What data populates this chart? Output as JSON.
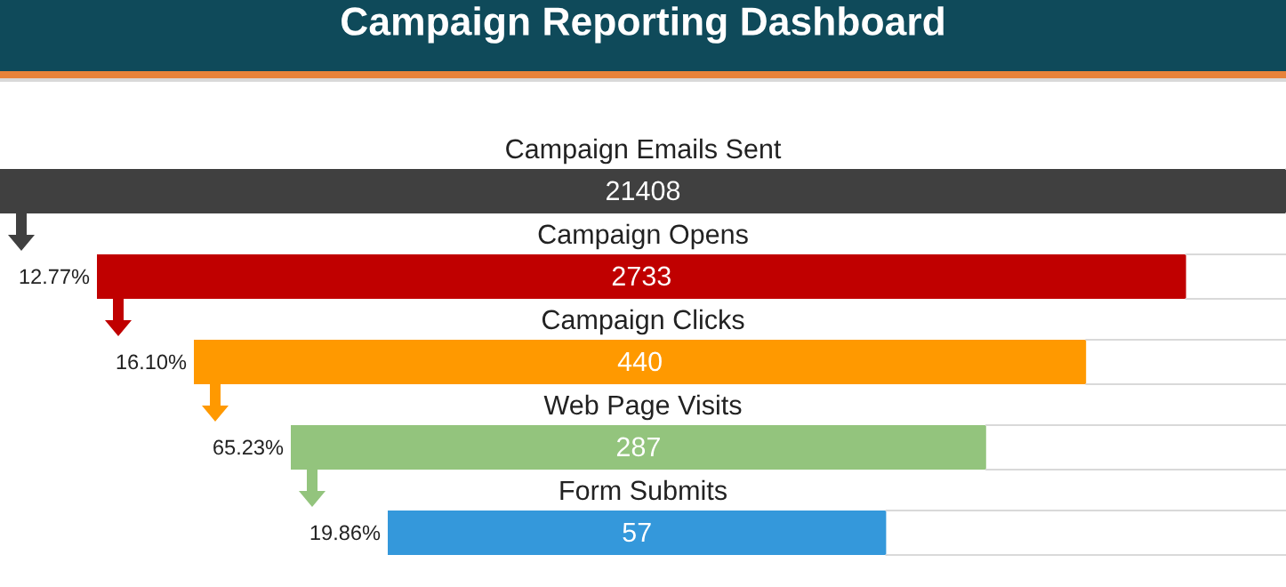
{
  "chart_data": {
    "type": "other",
    "title": "Campaign Reporting Dashboard",
    "categories": [
      "Campaign Emails Sent",
      "Campaign Opens",
      "Campaign Clicks",
      "Web Page Visits",
      "Form Submits"
    ],
    "values": [
      21408,
      2733,
      440,
      287,
      57
    ],
    "colors": [
      "#404040",
      "#c00000",
      "#ff9900",
      "#93c47d",
      "#3498db"
    ],
    "data_labels": true,
    "annotations": [
      "12.77%",
      "16.10%",
      "65.23%",
      "19.86%"
    ]
  }
}
